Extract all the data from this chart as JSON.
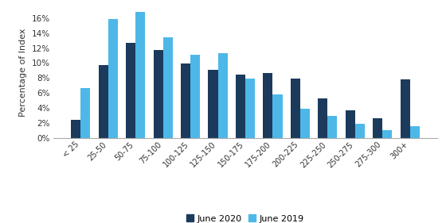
{
  "categories": [
    "< 25",
    "25-50",
    "50-75",
    "75-100",
    "100-125",
    "125-150",
    "150-175",
    "175-200",
    "200-225",
    "225-250",
    "250-275",
    "275-300",
    "300+"
  ],
  "june2020": [
    2.5,
    9.7,
    12.7,
    11.7,
    9.9,
    9.1,
    8.5,
    8.7,
    7.9,
    5.3,
    3.7,
    2.7,
    7.8
  ],
  "june2019": [
    6.7,
    15.9,
    16.8,
    13.4,
    11.1,
    11.3,
    7.9,
    5.8,
    3.9,
    3.0,
    1.9,
    1.1,
    1.6
  ],
  "color2020": "#1b3a5c",
  "color2019": "#4db8e8",
  "ylabel": "Percentage of Index",
  "legend2020": "June 2020",
  "legend2019": "June 2019",
  "ylim": [
    0,
    17.5
  ],
  "yticks": [
    0,
    2,
    4,
    6,
    8,
    10,
    12,
    14,
    16
  ],
  "background_color": "#ffffff",
  "bar_width": 0.35,
  "xlabel_fontsize": 7,
  "ylabel_fontsize": 8,
  "ytick_fontsize": 7.5,
  "legend_fontsize": 8
}
